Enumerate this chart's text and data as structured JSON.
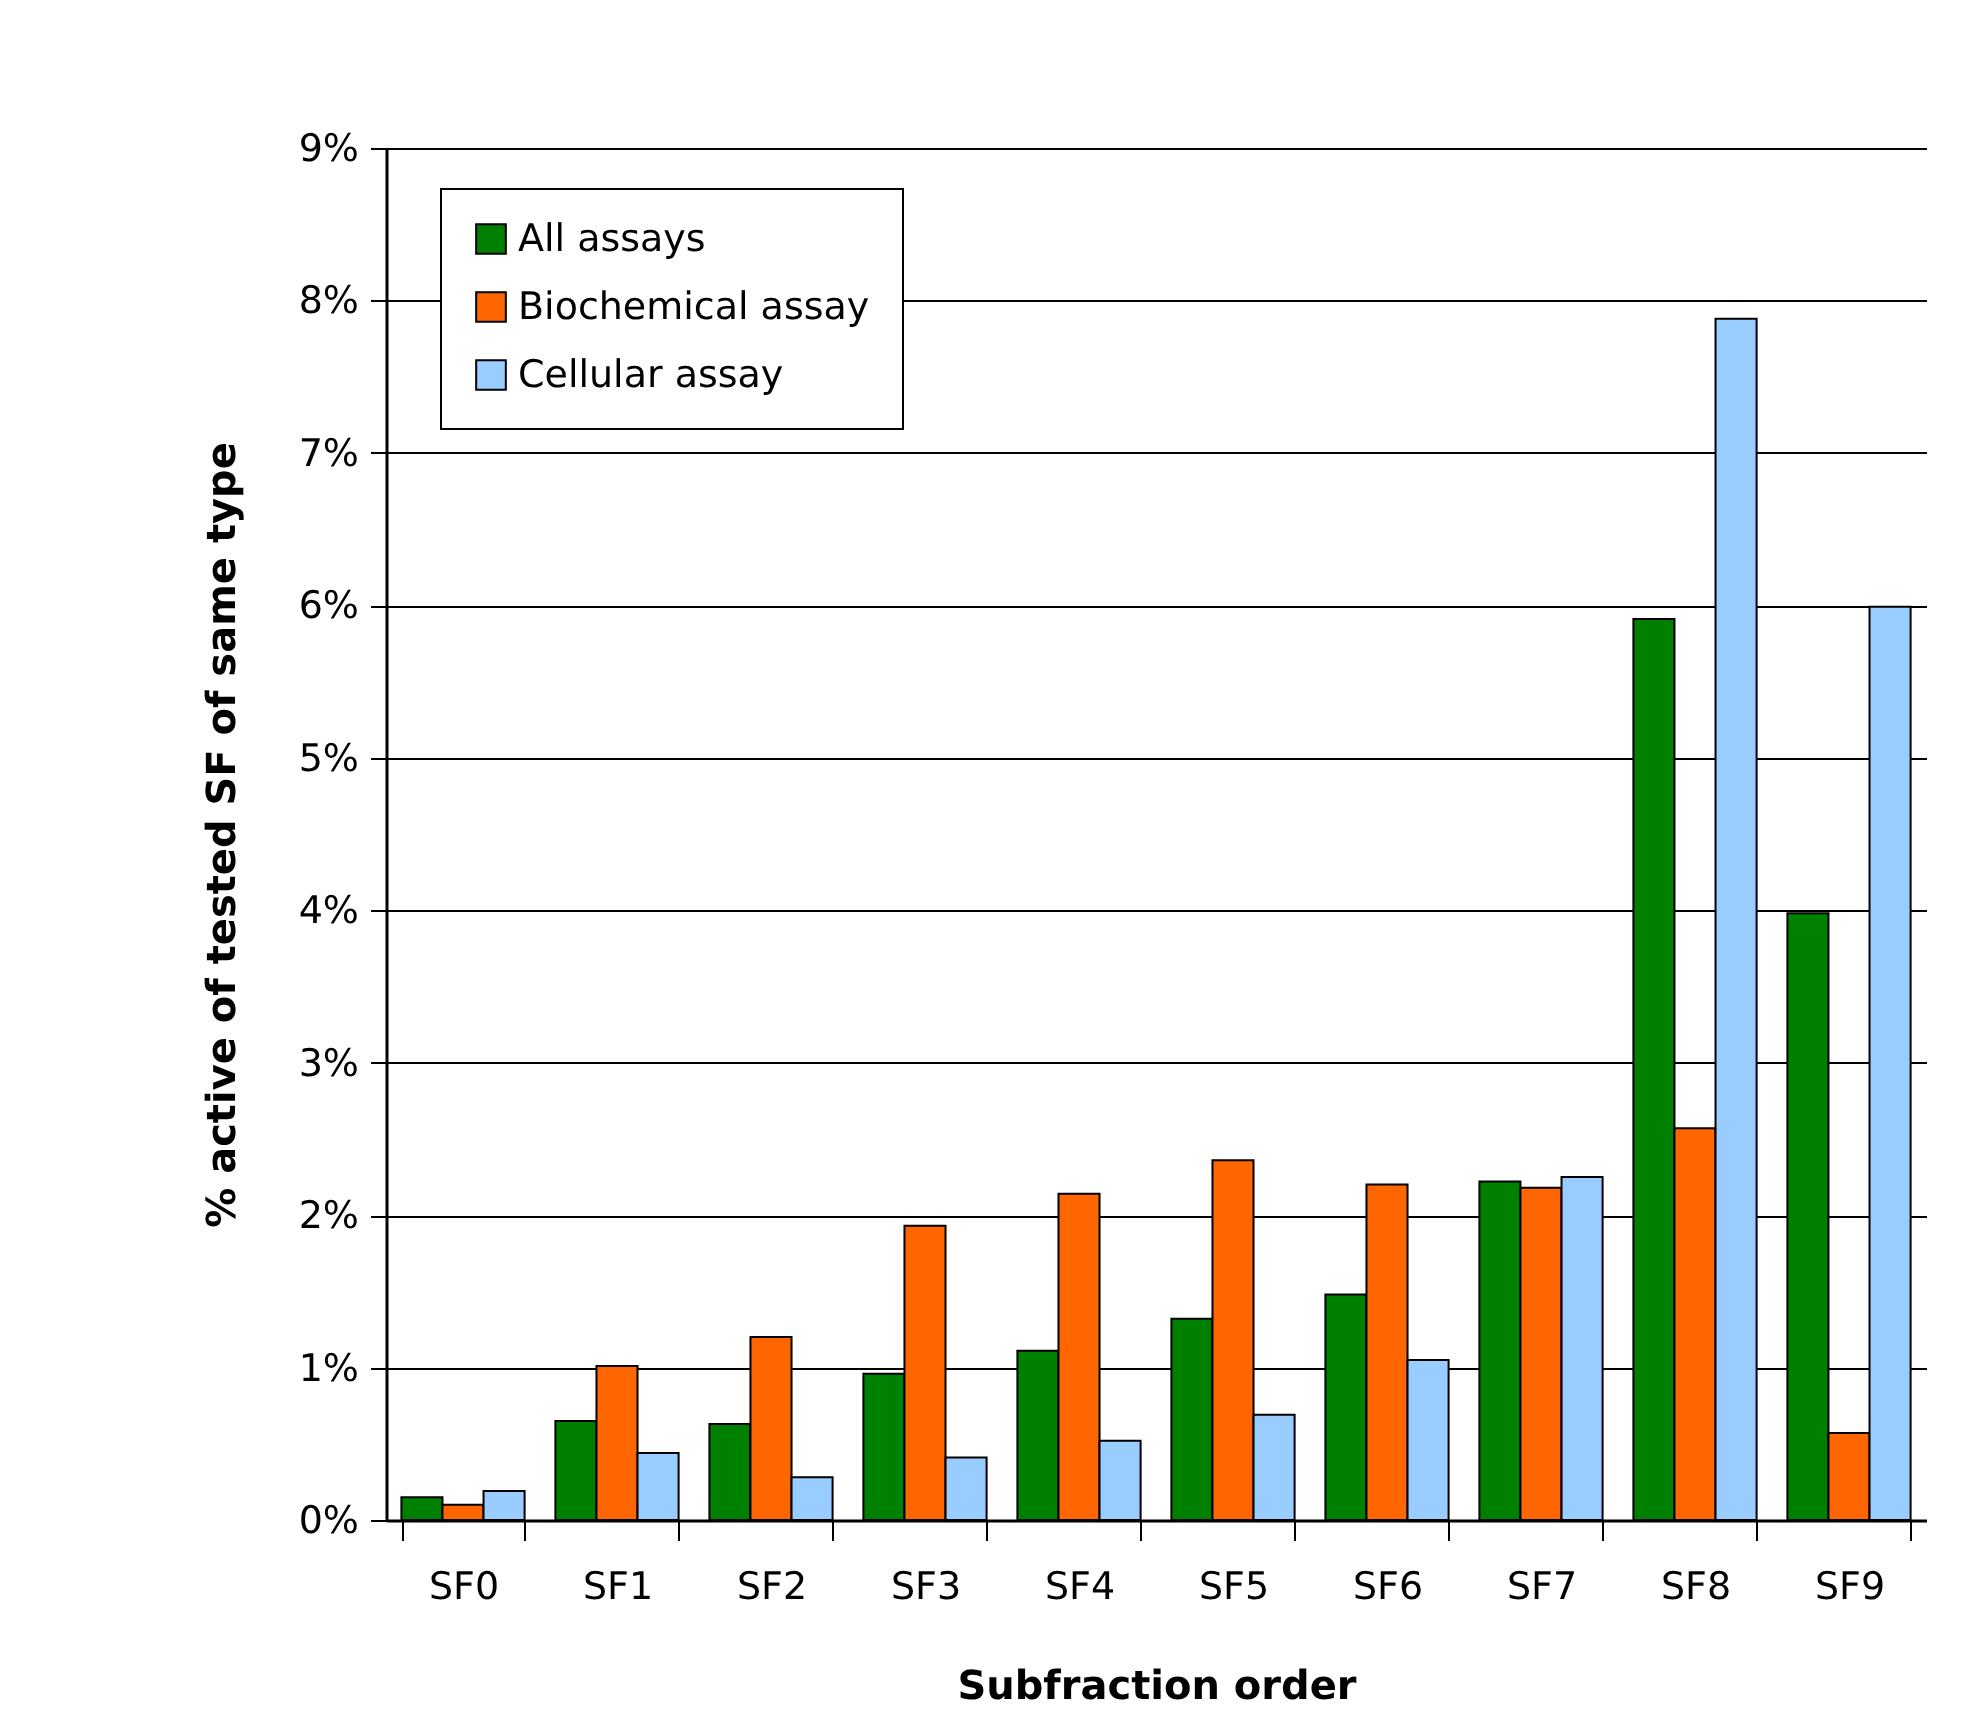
{
  "chart_data": {
    "type": "bar",
    "xlabel": "Subfraction order",
    "ylabel": "% active of tested SF of same type",
    "categories": [
      "SF0",
      "SF1",
      "SF2",
      "SF3",
      "SF4",
      "SF5",
      "SF6",
      "SF7",
      "SF8",
      "SF9"
    ],
    "series": [
      {
        "name": "All assays",
        "color": "#008000",
        "values": [
          0.15,
          0.65,
          0.63,
          0.96,
          1.11,
          1.32,
          1.48,
          2.22,
          5.91,
          3.98
        ]
      },
      {
        "name": "Biochemical assay",
        "color": "#ff6600",
        "values": [
          0.1,
          1.01,
          1.2,
          1.93,
          2.14,
          2.36,
          2.2,
          2.18,
          2.57,
          0.57
        ]
      },
      {
        "name": "Cellular assay",
        "color": "#99ccff",
        "values": [
          0.19,
          0.44,
          0.28,
          0.41,
          0.52,
          0.69,
          1.05,
          2.25,
          7.88,
          5.99
        ]
      }
    ],
    "ylim": [
      0,
      9
    ],
    "yticks": [
      {
        "value": 0,
        "label": "0%"
      },
      {
        "value": 1,
        "label": "1%"
      },
      {
        "value": 2,
        "label": "2%"
      },
      {
        "value": 3,
        "label": "3%"
      },
      {
        "value": 4,
        "label": "4%"
      },
      {
        "value": 5,
        "label": "5%"
      },
      {
        "value": 6,
        "label": "6%"
      },
      {
        "value": 7,
        "label": "7%"
      },
      {
        "value": 8,
        "label": "8%"
      },
      {
        "value": 9,
        "label": "9%"
      }
    ],
    "grid": "y",
    "legend": "top left"
  }
}
